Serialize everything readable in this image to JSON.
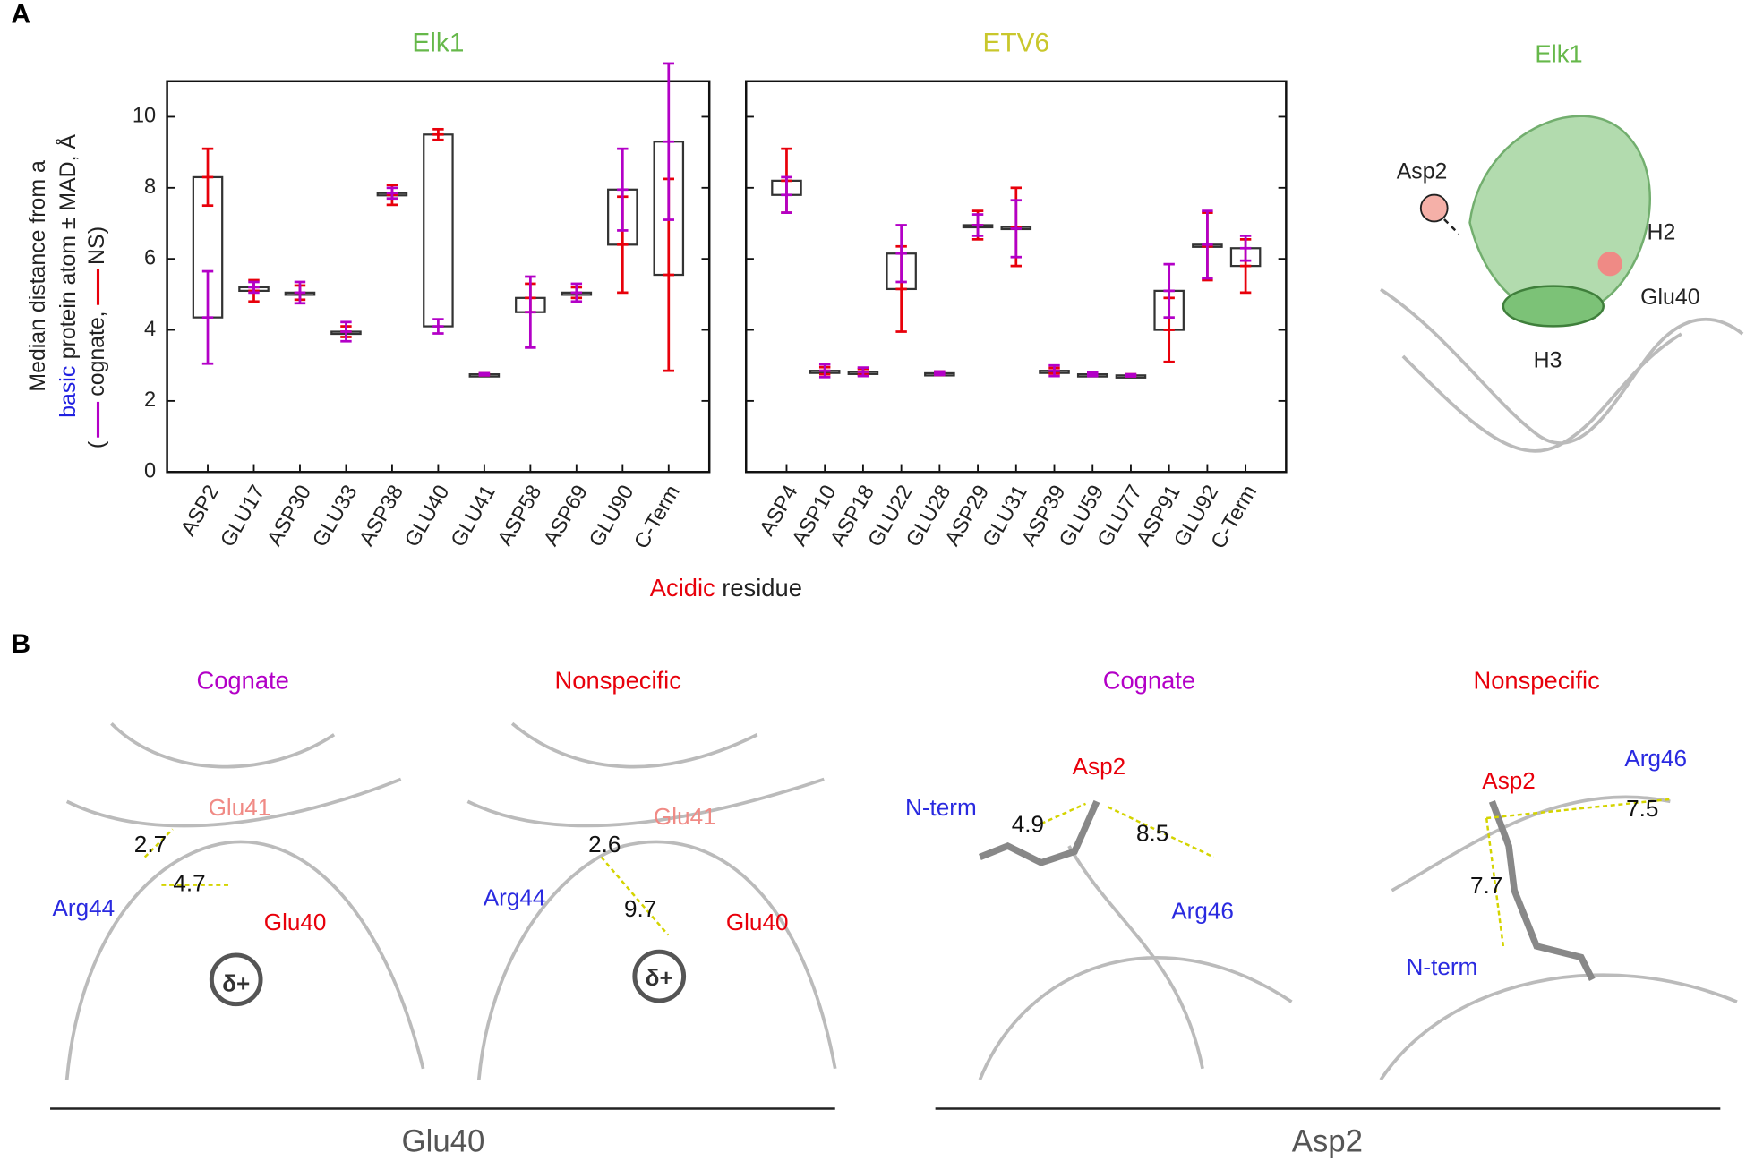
{
  "panel_a": {
    "label": "A",
    "structure": {
      "title": "Elk1",
      "labels": [
        "Asp2",
        "H2",
        "Glu40",
        "H3"
      ]
    }
  },
  "chart_data": [
    {
      "type": "box-error",
      "title": "Elk1",
      "title_color": "#66b84a",
      "categories": [
        "ASP2",
        "GLU17",
        "ASP30",
        "GLU33",
        "ASP38",
        "GLU40",
        "GLU41",
        "ASP58",
        "ASP69",
        "GLU90",
        "C-Term"
      ],
      "series": [
        {
          "name": "cognate",
          "color": "#b300c7",
          "values": [
            4.35,
            5.2,
            5.05,
            3.95,
            7.85,
            4.1,
            2.75,
            4.5,
            5.05,
            7.95,
            9.3
          ],
          "errors": [
            1.3,
            0.15,
            0.3,
            0.27,
            0.15,
            0.2,
            0.03,
            1.0,
            0.25,
            1.15,
            2.2
          ]
        },
        {
          "name": "NS",
          "color": "#e8000b",
          "values": [
            8.3,
            5.1,
            5.05,
            3.95,
            7.8,
            9.5,
            2.75,
            4.9,
            5.05,
            6.4,
            5.55
          ],
          "errors": [
            0.8,
            0.3,
            0.2,
            0.15,
            0.28,
            0.15,
            0.03,
            0.4,
            0.15,
            1.35,
            2.7
          ]
        }
      ],
      "ylim": [
        0,
        11
      ],
      "yticks": [
        0,
        2,
        4,
        6,
        8,
        10
      ],
      "show_ytick_labels": true,
      "ylabel": [
        "Median distance from a",
        "basic",
        "protein atom ± MAD, Å"
      ],
      "ylabel_punct": [
        "(",
        ",",
        ")"
      ],
      "xlabel": [
        "Acidic",
        "residue"
      ]
    },
    {
      "type": "box-error",
      "title": "ETV6",
      "title_color": "#c9c72c",
      "categories": [
        "ASP4",
        "ASP10",
        "ASP18",
        "GLU22",
        "GLU28",
        "ASP29",
        "GLU31",
        "ASP39",
        "GLU59",
        "GLU77",
        "ASP91",
        "GLU92",
        "C-Term"
      ],
      "series": [
        {
          "name": "cognate",
          "color": "#b300c7",
          "values": [
            7.8,
            2.85,
            2.82,
            6.15,
            2.78,
            6.95,
            6.85,
            2.85,
            2.75,
            2.72,
            5.1,
            6.4,
            6.3
          ],
          "errors": [
            0.5,
            0.18,
            0.12,
            0.8,
            0.05,
            0.3,
            0.8,
            0.15,
            0.05,
            0.03,
            0.75,
            0.95,
            0.35
          ]
        },
        {
          "name": "NS",
          "color": "#e8000b",
          "values": [
            8.2,
            2.85,
            2.82,
            5.15,
            2.78,
            6.95,
            6.9,
            2.85,
            2.75,
            2.72,
            4.0,
            6.35,
            5.8
          ],
          "errors": [
            0.9,
            0.1,
            0.08,
            1.2,
            0.05,
            0.4,
            1.1,
            0.08,
            0.05,
            0.03,
            0.9,
            0.95,
            0.75
          ]
        }
      ],
      "ylim": [
        0,
        11
      ],
      "yticks": [
        0,
        2,
        4,
        6,
        8,
        10
      ],
      "show_ytick_labels": false
    }
  ],
  "panel_b": {
    "label": "B",
    "views": [
      {
        "title": "Cognate",
        "labels": [
          "Glu41",
          "2.7",
          "4.7",
          "Arg44",
          "Glu40",
          "δ+"
        ]
      },
      {
        "title": "Nonspecific",
        "labels": [
          "Glu41",
          "2.6",
          "Arg44",
          "9.7",
          "Glu40",
          "δ+"
        ]
      },
      {
        "title": "Cognate",
        "labels": [
          "Asp2",
          "N-term",
          "4.9",
          "8.5",
          "Arg46"
        ]
      },
      {
        "title": "Nonspecific",
        "labels": [
          "Arg46",
          "Asp2",
          "7.5",
          "7.7",
          "N-term"
        ]
      }
    ],
    "groups": [
      "Glu40",
      "Asp2"
    ]
  }
}
